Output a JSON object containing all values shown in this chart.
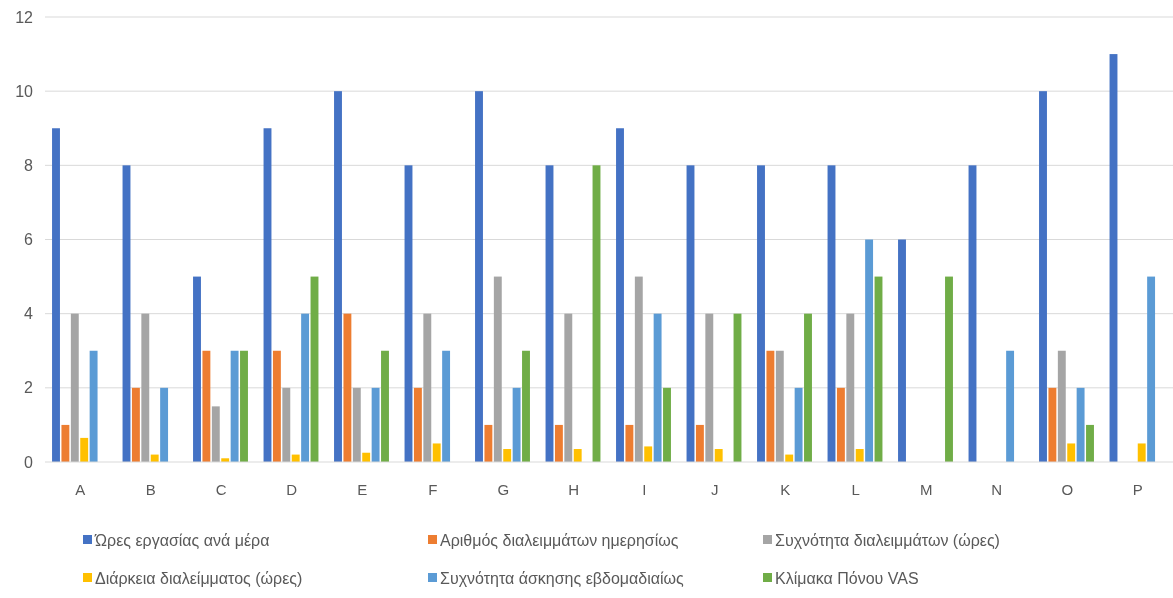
{
  "chart_data": {
    "type": "bar",
    "categories": [
      "A",
      "B",
      "C",
      "D",
      "E",
      "F",
      "G",
      "H",
      "I",
      "J",
      "K",
      "L",
      "M",
      "N",
      "O",
      "P"
    ],
    "series": [
      {
        "name": "Ώρες εργασίας ανά μέρα",
        "color": "#4472c4",
        "values": [
          9,
          8,
          5,
          9,
          10,
          8,
          10,
          8,
          9,
          8,
          8,
          8,
          6,
          8,
          10,
          11
        ]
      },
      {
        "name": "Αριθμός διαλειμμάτων ημερησίως",
        "color": "#ed7d31",
        "values": [
          1,
          2,
          3,
          3,
          4,
          2,
          1,
          1,
          1,
          1,
          3,
          2,
          0,
          0,
          2,
          0
        ]
      },
      {
        "name": "Συχνότητα διαλειμμάτων (ώρες)",
        "color": "#a5a5a5",
        "values": [
          4,
          4,
          1.5,
          2,
          2,
          4,
          5,
          4,
          5,
          4,
          3,
          4,
          0,
          0,
          3,
          0
        ]
      },
      {
        "name": "Διάρκεια διαλείμματος (ώρες)",
        "color": "#ffc000",
        "values": [
          0.65,
          0.2,
          0.1,
          0.2,
          0.25,
          0.5,
          0.35,
          0.35,
          0.42,
          0.35,
          0.2,
          0.35,
          0,
          0,
          0.5,
          0.5
        ]
      },
      {
        "name": "Συχνότητα άσκησης εβδομαδιαίως",
        "color": "#5b9bd5",
        "values": [
          3,
          2,
          3,
          4,
          2,
          3,
          2,
          0,
          4,
          0,
          2,
          6,
          0,
          3,
          2,
          5
        ]
      },
      {
        "name": "Κλίμακα Πόνου VAS",
        "color": "#70ad47",
        "values": [
          0,
          0,
          3,
          5,
          3,
          0,
          3,
          8,
          2,
          4,
          4,
          5,
          5,
          0,
          1,
          0
        ]
      }
    ],
    "ylim": [
      0,
      12
    ],
    "yticks": [
      0,
      2,
      4,
      6,
      8,
      10,
      12
    ],
    "grid": "y",
    "legend": "bottom"
  }
}
